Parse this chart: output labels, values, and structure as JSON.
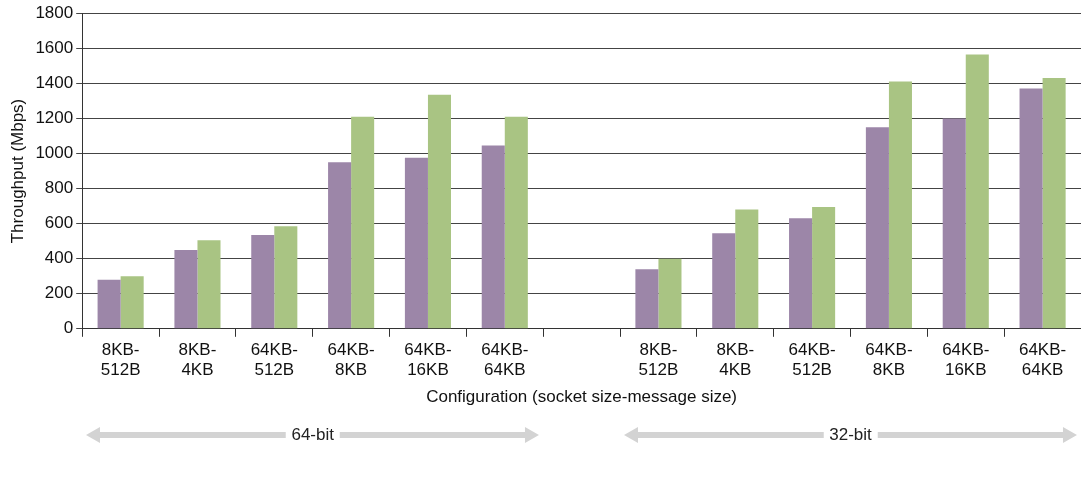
{
  "chart_data": {
    "type": "bar",
    "xlabel": "Configuration (socket size-message size)",
    "ylabel": "Throughput (Mbps)",
    "categories": [
      "8KB-512B",
      "8KB-4KB",
      "64KB-512B",
      "64KB-8KB",
      "64KB-16KB",
      "64KB-64KB",
      null,
      "8KB-512B",
      "8KB-4KB",
      "64KB-512B",
      "64KB-8KB",
      "64KB-16KB",
      "64KB-64KB"
    ],
    "series": [
      {
        "color": "#9c86a8",
        "values": [
          280,
          450,
          535,
          950,
          975,
          1045,
          null,
          340,
          545,
          630,
          1150,
          1200,
          1370
        ]
      },
      {
        "color": "#a9c483",
        "values": [
          300,
          505,
          585,
          1210,
          1335,
          1210,
          null,
          400,
          680,
          695,
          1410,
          1565,
          1430
        ]
      }
    ],
    "ylim": [
      0,
      1800
    ],
    "yticks": [
      0,
      200,
      400,
      600,
      800,
      1000,
      1200,
      1400,
      1600,
      1800
    ],
    "grid": "y",
    "legend": false,
    "annotations": [
      "64-bit",
      "32-bit"
    ]
  }
}
